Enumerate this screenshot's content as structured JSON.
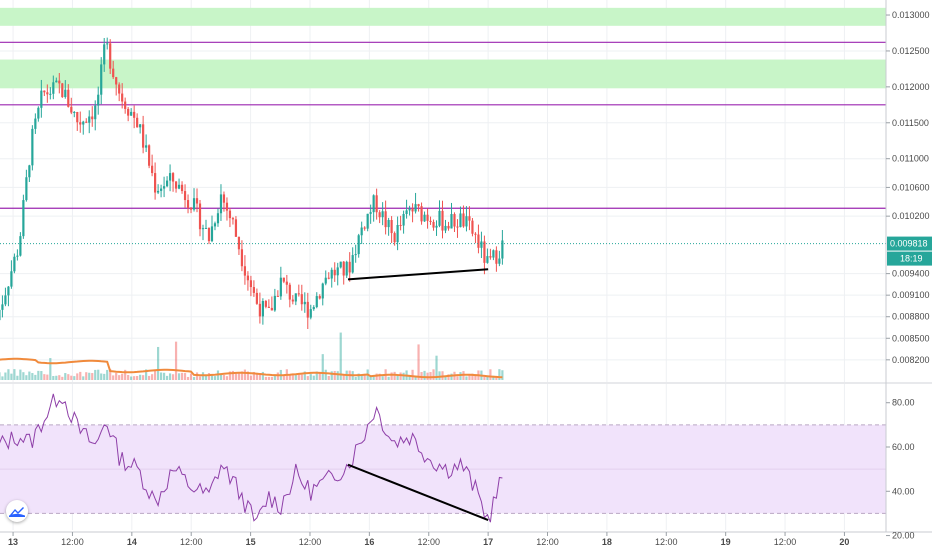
{
  "colors": {
    "up": "#26a69a",
    "down": "#ef5350",
    "zone_fill": "#c8f5c8",
    "resistance_line": "#9c27b0",
    "trend_line": "#000000",
    "rsi_line": "#8e3fa8",
    "rsi_band": "#f1e3fb",
    "volume_ma": "#f08a3c",
    "last_price_line": "#26a69a",
    "grid": "#eef0f3"
  },
  "icons": {
    "logo": "tradingview-cloud-icon"
  },
  "chart_data": [
    {
      "type": "candlestick",
      "title": "",
      "x_tick_labels": [
        "13",
        "12:00",
        "14",
        "12:00",
        "15",
        "12:00",
        "16",
        "12:00",
        "17",
        "12:00",
        "18",
        "12:00",
        "19",
        "12:00",
        "20"
      ],
      "y_tick_labels": [
        "0.013000",
        "0.012500",
        "0.012000",
        "0.011500",
        "0.011000",
        "0.010600",
        "0.010200",
        "0.009400",
        "0.009100",
        "0.008800",
        "0.008500",
        "0.008200"
      ],
      "ylim": [
        0.0081,
        0.01307
      ],
      "last_price": {
        "value": 0.009818,
        "label": "0.009818",
        "countdown": "18:19"
      },
      "zones": [
        {
          "from": 0.01285,
          "to": 0.0131
        },
        {
          "from": 0.01198,
          "to": 0.01238
        }
      ],
      "horizontal_lines": [
        0.01262,
        0.01175,
        0.01031
      ],
      "trend_line": {
        "from": {
          "day": 15.82,
          "price": 0.00932
        },
        "to": {
          "day": 17.0,
          "price": 0.00946
        }
      },
      "anchors": [
        {
          "day": 12.85,
          "price": 0.0087
        },
        {
          "day": 13.05,
          "price": 0.0098
        },
        {
          "day": 13.15,
          "price": 0.0112
        },
        {
          "day": 13.25,
          "price": 0.0119
        },
        {
          "day": 13.4,
          "price": 0.012
        },
        {
          "day": 13.55,
          "price": 0.0115
        },
        {
          "day": 13.7,
          "price": 0.0117
        },
        {
          "day": 13.78,
          "price": 0.0126
        },
        {
          "day": 13.9,
          "price": 0.0119
        },
        {
          "day": 14.05,
          "price": 0.0115
        },
        {
          "day": 14.2,
          "price": 0.0106
        },
        {
          "day": 14.35,
          "price": 0.0107
        },
        {
          "day": 14.5,
          "price": 0.0104
        },
        {
          "day": 14.65,
          "price": 0.0099
        },
        {
          "day": 14.75,
          "price": 0.0105
        },
        {
          "day": 14.85,
          "price": 0.0101
        },
        {
          "day": 14.95,
          "price": 0.0095
        },
        {
          "day": 15.05,
          "price": 0.009
        },
        {
          "day": 15.15,
          "price": 0.0088
        },
        {
          "day": 15.25,
          "price": 0.0093
        },
        {
          "day": 15.38,
          "price": 0.009
        },
        {
          "day": 15.5,
          "price": 0.0089
        },
        {
          "day": 15.65,
          "price": 0.0094
        },
        {
          "day": 15.82,
          "price": 0.00945
        },
        {
          "day": 15.95,
          "price": 0.0101
        },
        {
          "day": 16.05,
          "price": 0.0104
        },
        {
          "day": 16.2,
          "price": 0.0099
        },
        {
          "day": 16.35,
          "price": 0.0103
        },
        {
          "day": 16.5,
          "price": 0.0102
        },
        {
          "day": 16.65,
          "price": 0.0101
        },
        {
          "day": 16.78,
          "price": 0.01015
        },
        {
          "day": 16.9,
          "price": 0.0099
        },
        {
          "day": 17.0,
          "price": 0.0095
        },
        {
          "day": 17.12,
          "price": 0.0098
        }
      ]
    },
    {
      "type": "line",
      "title": "",
      "y_tick_labels": [
        "80.00",
        "60.00",
        "40.00",
        "20.00"
      ],
      "ylim": [
        18,
        88
      ],
      "band": [
        30,
        70
      ],
      "midline": 50,
      "trend_line": {
        "from": {
          "day": 15.82,
          "value": 52
        },
        "to": {
          "day": 17.0,
          "value": 27
        }
      },
      "anchors": [
        {
          "day": 12.85,
          "value": 60
        },
        {
          "day": 13.05,
          "value": 65
        },
        {
          "day": 13.15,
          "value": 62
        },
        {
          "day": 13.25,
          "value": 72
        },
        {
          "day": 13.4,
          "value": 85
        },
        {
          "day": 13.55,
          "value": 68
        },
        {
          "day": 13.7,
          "value": 60
        },
        {
          "day": 13.78,
          "value": 73
        },
        {
          "day": 13.9,
          "value": 55
        },
        {
          "day": 14.05,
          "value": 50
        },
        {
          "day": 14.2,
          "value": 35
        },
        {
          "day": 14.35,
          "value": 50
        },
        {
          "day": 14.5,
          "value": 42
        },
        {
          "day": 14.65,
          "value": 38
        },
        {
          "day": 14.75,
          "value": 52
        },
        {
          "day": 14.85,
          "value": 45
        },
        {
          "day": 14.95,
          "value": 35
        },
        {
          "day": 15.05,
          "value": 25
        },
        {
          "day": 15.15,
          "value": 38
        },
        {
          "day": 15.25,
          "value": 33
        },
        {
          "day": 15.38,
          "value": 48
        },
        {
          "day": 15.5,
          "value": 40
        },
        {
          "day": 15.65,
          "value": 45
        },
        {
          "day": 15.82,
          "value": 52
        },
        {
          "day": 15.95,
          "value": 65
        },
        {
          "day": 16.05,
          "value": 78
        },
        {
          "day": 16.2,
          "value": 62
        },
        {
          "day": 16.35,
          "value": 65
        },
        {
          "day": 16.5,
          "value": 55
        },
        {
          "day": 16.65,
          "value": 50
        },
        {
          "day": 16.78,
          "value": 52
        },
        {
          "day": 16.9,
          "value": 40
        },
        {
          "day": 17.0,
          "value": 27
        },
        {
          "day": 17.12,
          "value": 47
        }
      ]
    }
  ]
}
